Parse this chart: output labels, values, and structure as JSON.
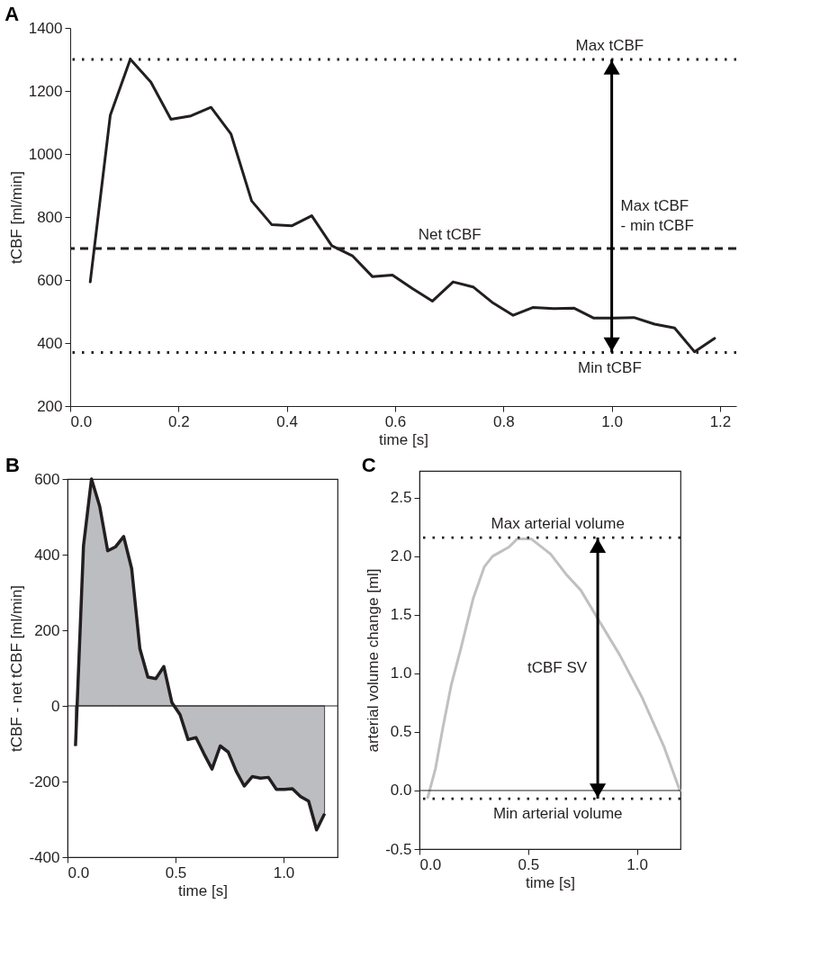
{
  "chart_data": [
    {
      "type": "line",
      "title": "A",
      "xlabel": "time [s]",
      "ylabel": "tCBF [ml/min]",
      "x": [
        0.037,
        0.074,
        0.111,
        0.149,
        0.186,
        0.223,
        0.26,
        0.297,
        0.335,
        0.372,
        0.409,
        0.446,
        0.483,
        0.521,
        0.558,
        0.595,
        0.632,
        0.669,
        0.707,
        0.744,
        0.781,
        0.818,
        0.855,
        0.893,
        0.93,
        0.967,
        1.004,
        1.041,
        1.079,
        1.116,
        1.153,
        1.19
      ],
      "series": [
        {
          "color": "#231f20",
          "values": [
            594,
            1123,
            1301,
            1228,
            1110,
            1121,
            1148,
            1063,
            851,
            776,
            772,
            804,
            709,
            677,
            611,
            616,
            573,
            533,
            594,
            578,
            527,
            488,
            513,
            509,
            511,
            479,
            479,
            481,
            460,
            448,
            372,
            415
          ]
        }
      ],
      "xlim": [
        0,
        1.23
      ],
      "xticks": [
        {
          "value": 0,
          "label": "0.0"
        },
        {
          "value": 0.2,
          "label": "0.2"
        },
        {
          "value": 0.4,
          "label": "0.4"
        },
        {
          "value": 0.6,
          "label": "0.6"
        },
        {
          "value": 0.8,
          "label": "0.8"
        },
        {
          "value": 1,
          "label": "1.0"
        },
        {
          "value": 1.2,
          "label": "1.2"
        }
      ],
      "ylim": [
        200,
        1400
      ],
      "yticks": [
        200,
        400,
        600,
        800,
        1000,
        1200,
        1400
      ],
      "ref_lines": [
        {
          "axis": "y",
          "value": 1300,
          "label": "Max tCBF",
          "line_style": "dotted"
        },
        {
          "axis": "y",
          "value": 700,
          "label": "Net tCBF",
          "line_style": "dashed"
        },
        {
          "axis": "y",
          "value": 370,
          "label": "Min tCBF",
          "line_style": "dotted"
        }
      ],
      "annotations": [
        "Max tCBF\n- min tCBF"
      ]
    },
    {
      "type": "area",
      "title": "B",
      "xlabel": "time [s]",
      "ylabel": "tCBF - net tCBF [ml/min]",
      "x": [
        0.037,
        0.074,
        0.111,
        0.149,
        0.186,
        0.223,
        0.26,
        0.297,
        0.335,
        0.372,
        0.409,
        0.446,
        0.483,
        0.521,
        0.558,
        0.595,
        0.632,
        0.669,
        0.707,
        0.744,
        0.781,
        0.818,
        0.855,
        0.893,
        0.93,
        0.967,
        1.004,
        1.041,
        1.079,
        1.116,
        1.153,
        1.19
      ],
      "series": [
        {
          "color": "#bcbdc1",
          "values": [
            -106,
            423,
            600,
            528,
            410,
            421,
            448,
            363,
            151,
            76,
            72,
            104,
            9,
            -23,
            -89,
            -84,
            -127,
            -167,
            -106,
            -122,
            -173,
            -212,
            -187,
            -191,
            -189,
            -221,
            -221,
            -219,
            -240,
            -252,
            -328,
            -285
          ]
        }
      ],
      "xlim": [
        0,
        1.25
      ],
      "xticks": [
        {
          "value": 0,
          "label": "0.0"
        },
        {
          "value": 0.5,
          "label": "0.5"
        },
        {
          "value": 1,
          "label": "1.0"
        }
      ],
      "ylim": [
        -400,
        600
      ],
      "yticks": [
        -400,
        -200,
        0,
        200,
        400,
        600
      ],
      "ref_lines": [
        {
          "axis": "y",
          "value": 0,
          "line_style": "solid"
        }
      ]
    },
    {
      "type": "line",
      "title": "C",
      "xlabel": "time [s]",
      "ylabel": "arterial volume change [ml]",
      "x": [
        0.038,
        0.074,
        0.108,
        0.146,
        0.19,
        0.247,
        0.298,
        0.336,
        0.412,
        0.45,
        0.513,
        0.603,
        0.673,
        0.742,
        0.819,
        0.92,
        1.022,
        1.123,
        1.197
      ],
      "series": [
        {
          "color": "#c0c0c0",
          "values": [
            -0.06,
            0.19,
            0.54,
            0.9,
            1.21,
            1.64,
            1.91,
            2.0,
            2.08,
            2.15,
            2.15,
            2.02,
            1.85,
            1.71,
            1.47,
            1.16,
            0.8,
            0.38,
            0.0
          ]
        }
      ],
      "xlim": [
        0,
        1.2
      ],
      "xticks": [
        {
          "value": 0,
          "label": "0.0"
        },
        {
          "value": 0.5,
          "label": "0.5"
        },
        {
          "value": 1,
          "label": "1.0"
        }
      ],
      "ylim": [
        -0.5,
        2.73
      ],
      "yticks": [
        -0.5,
        {
          "value": 0,
          "label": "0.0"
        },
        0.5,
        {
          "value": 1,
          "label": "1.0"
        },
        1.5,
        {
          "value": 2,
          "label": "2.0"
        },
        2.5
      ],
      "ref_lines": [
        {
          "axis": "y",
          "value": 0,
          "line_style": "solid"
        },
        {
          "axis": "y",
          "value": 2.16,
          "label": "Max arterial volume",
          "line_style": "dotted"
        },
        {
          "axis": "y",
          "value": -0.07,
          "label": "Min arterial volume",
          "line_style": "dotted"
        }
      ],
      "annotations": [
        "tCBF SV"
      ]
    }
  ]
}
